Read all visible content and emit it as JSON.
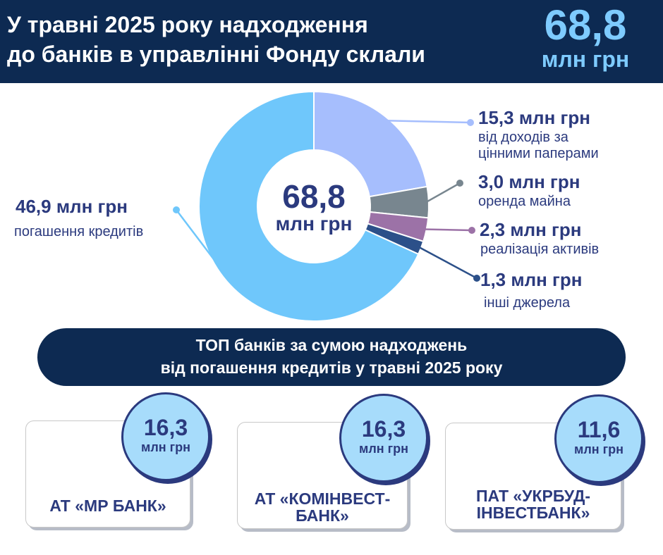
{
  "header": {
    "title_line1": "У травні 2025 року надходження",
    "title_line2": "до банків в управлінні Фонду склали",
    "total_value": "68,8",
    "total_unit": "млн грн"
  },
  "center": {
    "value": "68,8",
    "unit": "млн грн"
  },
  "chart_data": {
    "type": "pie",
    "style": "donut",
    "unit": "млн грн",
    "total": 68.8,
    "slices": [
      {
        "value": 15.3,
        "value_label": "15,3 млн грн",
        "label": "від доходів за цінними паперами",
        "label_lines": [
          "від доходів за",
          "цінними паперами"
        ],
        "color": "#a6befd"
      },
      {
        "value": 3.0,
        "value_label": "3,0 млн грн",
        "label": "оренда майна",
        "label_lines": [
          "оренда майна"
        ],
        "color": "#78868f"
      },
      {
        "value": 2.3,
        "value_label": "2,3 млн грн",
        "label": "реалізація активів",
        "label_lines": [
          "реалізація активів"
        ],
        "color": "#9c72a7"
      },
      {
        "value": 1.3,
        "value_label": "1,3 млн грн",
        "label": "інші джерела",
        "label_lines": [
          "інші джерела"
        ],
        "color": "#2c5089"
      },
      {
        "value": 46.9,
        "value_label": "46,9 млн грн",
        "label": "погашення кредитів",
        "label_lines": [
          "погашення кредитів"
        ],
        "color": "#6fc7fb"
      }
    ]
  },
  "top_banner": {
    "line1": "ТОП банків за сумою надходжень",
    "line2": "від погашення кредитів у травні 2025 року"
  },
  "banks": [
    {
      "value": "16,3",
      "unit": "млн грн",
      "name_lines": [
        "АТ «МР БАНК»"
      ]
    },
    {
      "value": "16,3",
      "unit": "млн грн",
      "name_lines": [
        "АТ «КОМІНВЕСТ-",
        "БАНК»"
      ]
    },
    {
      "value": "11,6",
      "unit": "млн грн",
      "name_lines": [
        "ПАТ «УКРБУД-",
        "ІНВЕСТБАНК»"
      ]
    }
  ]
}
